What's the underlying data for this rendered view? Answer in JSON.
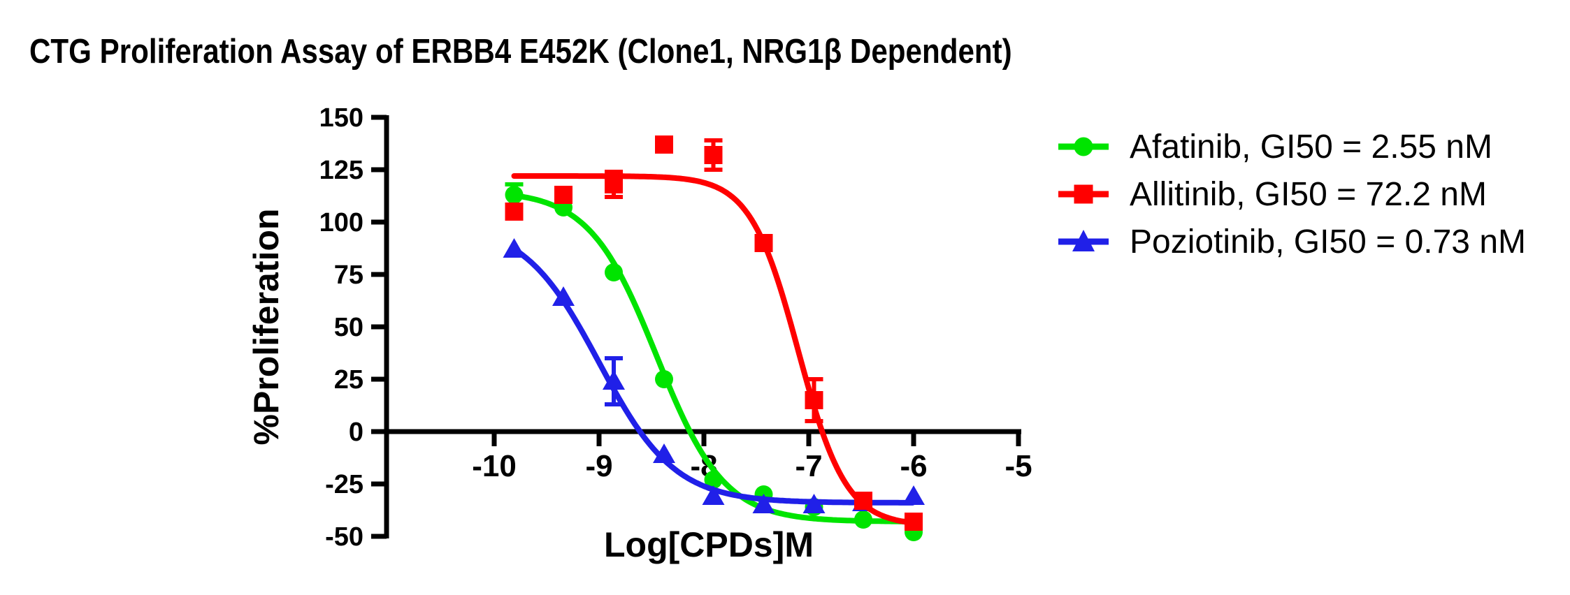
{
  "title": "CTG Proliferation Assay of ERBB4 E452K (Clone1, NRG1β Dependent)",
  "chart_data": {
    "type": "scatter",
    "subtype": "dose-response-curves",
    "xlabel": "Log[CPDs]M",
    "ylabel": "%Proliferation",
    "x_ticks": [
      -10,
      -9,
      -8,
      -7,
      -6,
      -5
    ],
    "y_ticks": [
      150,
      125,
      100,
      75,
      50,
      25,
      0,
      -25,
      -50
    ],
    "xlim": [
      -11.03,
      -5
    ],
    "ylim": [
      -50,
      150
    ],
    "grid": false,
    "legend_position": "right-outside",
    "axis_color": "#000000",
    "series": [
      {
        "name": "Afatinib",
        "gi50": "2.55 nM",
        "legend": "Afatinib, GI50 = 2.55 nM",
        "color": "#00e400",
        "marker": "circle",
        "points": [
          [
            -9.81,
            113,
            5
          ],
          [
            -9.34,
            107,
            0
          ],
          [
            -8.86,
            76,
            0
          ],
          [
            -8.38,
            25,
            0
          ],
          [
            -7.91,
            -23,
            0
          ],
          [
            -7.43,
            -30,
            0
          ],
          [
            -6.95,
            -36,
            0
          ],
          [
            -6.48,
            -42,
            0
          ],
          [
            -6.0,
            -48,
            0
          ]
        ],
        "fit": {
          "top": 115,
          "bottom": -43,
          "logec50": -8.45,
          "hill": 1.35,
          "x_start": -9.81,
          "x_end": -6.0
        }
      },
      {
        "name": "Poziotinib",
        "gi50": "0.73 nM",
        "legend": "Poziotinib, GI50 = 0.73 nM",
        "color": "#2020e8",
        "marker": "triangle",
        "points": [
          [
            -9.81,
            87,
            0
          ],
          [
            -9.34,
            64,
            0
          ],
          [
            -8.86,
            24,
            11
          ],
          [
            -8.38,
            -11,
            0
          ],
          [
            -7.91,
            -31,
            0
          ],
          [
            -7.43,
            -35,
            0
          ],
          [
            -6.95,
            -35,
            0
          ],
          [
            -6.48,
            -34,
            0
          ],
          [
            -6.0,
            -31,
            0
          ]
        ],
        "fit": {
          "top": 100,
          "bottom": -34,
          "logec50": -9.0,
          "hill": 1.2,
          "x_start": -9.81,
          "x_end": -6.0
        }
      },
      {
        "name": "Allitinib",
        "gi50": "72.2 nM",
        "legend": "Allitinib, GI50 = 72.2 nM",
        "color": "#ff0000",
        "marker": "square",
        "points": [
          [
            -9.81,
            105,
            0
          ],
          [
            -9.34,
            113,
            0
          ],
          [
            -8.86,
            118,
            6
          ],
          [
            -8.38,
            137,
            0
          ],
          [
            -7.91,
            132,
            7
          ],
          [
            -7.43,
            90,
            0
          ],
          [
            -6.95,
            15,
            10
          ],
          [
            -6.48,
            -33,
            0
          ],
          [
            -6.0,
            -43,
            0
          ]
        ],
        "fit": {
          "top": 122,
          "bottom": -45,
          "logec50": -7.1,
          "hill": 1.9,
          "x_start": -9.81,
          "x_end": -6.0
        }
      }
    ],
    "legend_order": [
      0,
      2,
      1
    ]
  }
}
